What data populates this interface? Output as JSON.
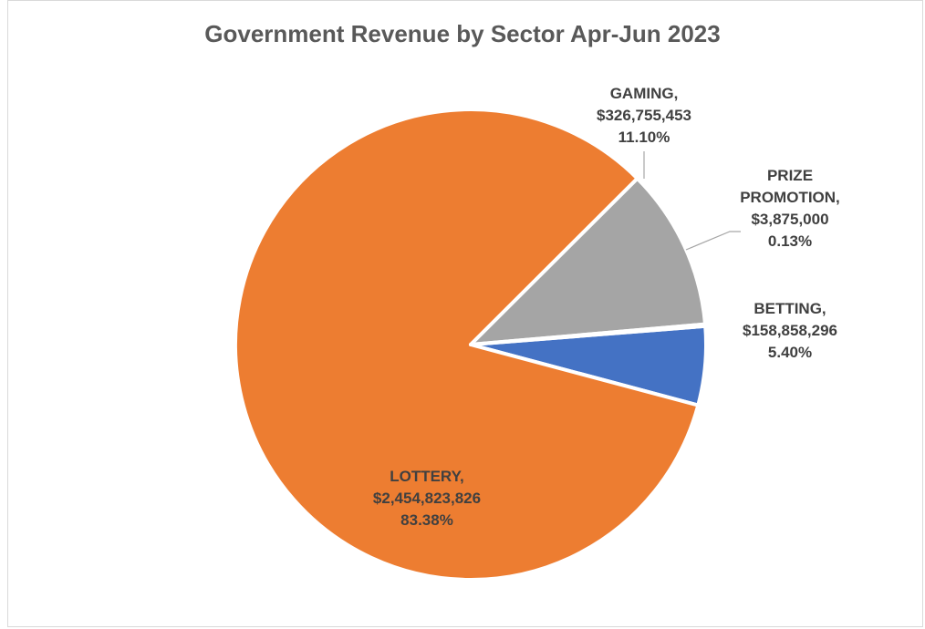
{
  "chart_data": {
    "type": "pie",
    "title": "Government Revenue by Sector Apr-Jun 2023",
    "slices": [
      {
        "label": "BETTING",
        "value_text": "$158,858,296",
        "value": 158858296,
        "percent": 5.4,
        "percent_text": "5.40%",
        "color": "#4472c4"
      },
      {
        "label": "LOTTERY",
        "value_text": "$2,454,823,826",
        "value": 2454823826,
        "percent": 83.38,
        "percent_text": "83.38%",
        "color": "#ed7d31"
      },
      {
        "label": "GAMING",
        "value_text": "$326,755,453",
        "value": 326755453,
        "percent": 11.1,
        "percent_text": "11.10%",
        "color": "#a5a5a5"
      },
      {
        "label": "PRIZE PROMOTION",
        "value_text": "$3,875,000",
        "value": 3875000,
        "percent": 0.13,
        "percent_text": "0.13%",
        "color": "#ffc000"
      }
    ]
  }
}
